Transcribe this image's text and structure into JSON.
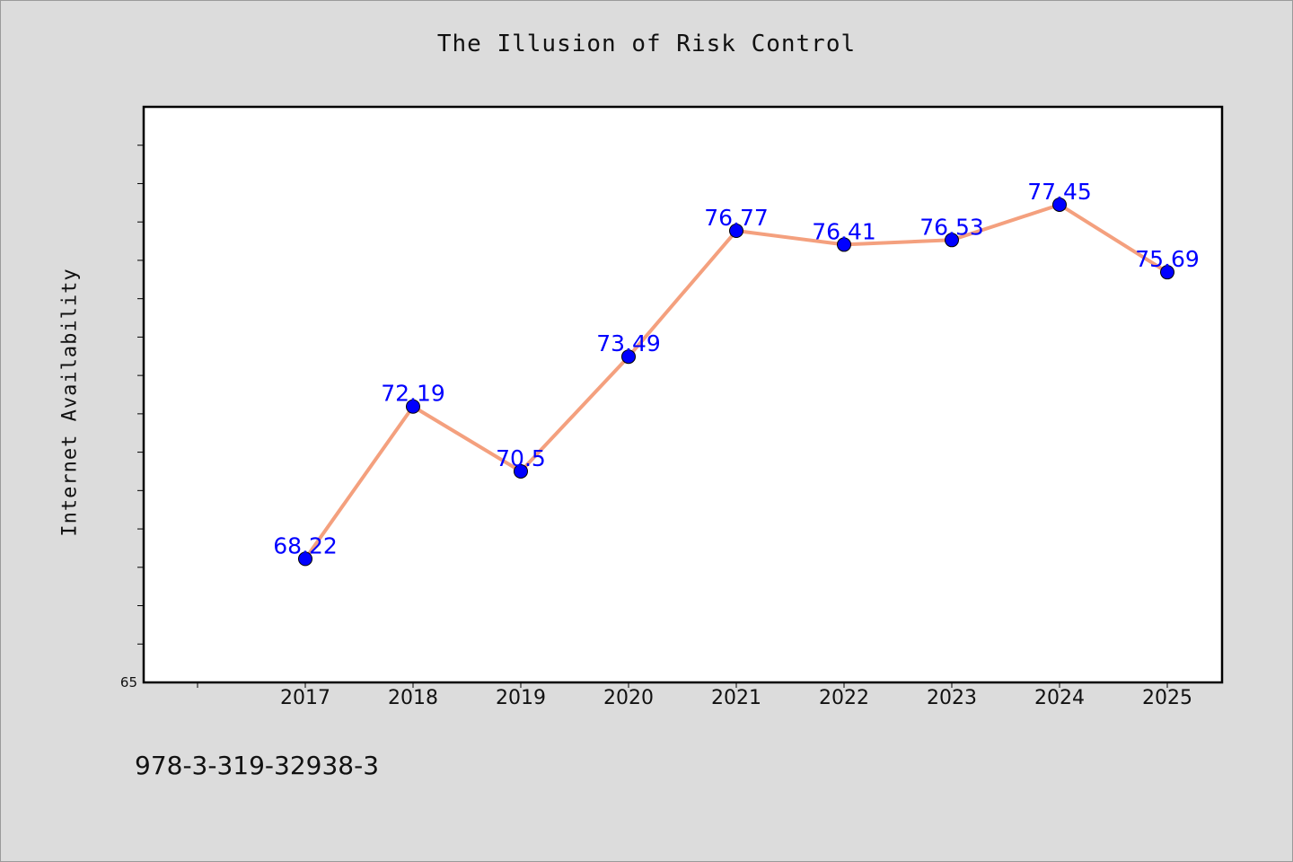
{
  "chart_data": {
    "type": "line",
    "title": "The Illusion of Risk Control",
    "xlabel": "",
    "ylabel": "Internet Availability",
    "categories": [
      "2017",
      "2018",
      "2019",
      "2020",
      "2021",
      "2022",
      "2023",
      "2024",
      "2025"
    ],
    "series": [
      {
        "values": [
          68.22,
          72.19,
          70.5,
          73.49,
          76.77,
          76.41,
          76.53,
          77.45,
          75.69
        ],
        "labels": [
          "68.22",
          "72.19",
          "70.5",
          "73.49",
          "76.77",
          "76.41",
          "76.53",
          "77.45",
          "75.69"
        ],
        "line_color": "#f4a07e",
        "marker_color": "#0000ff",
        "label_color": "#0000ff"
      }
    ],
    "ylim": [
      65,
      80
    ],
    "ytick_labels": [
      "65"
    ],
    "grid": false,
    "legend": "none"
  },
  "footnote": "978-3-319-32938-3",
  "colors": {
    "background": "#dcdcdc",
    "plot_background": "#ffffff"
  }
}
